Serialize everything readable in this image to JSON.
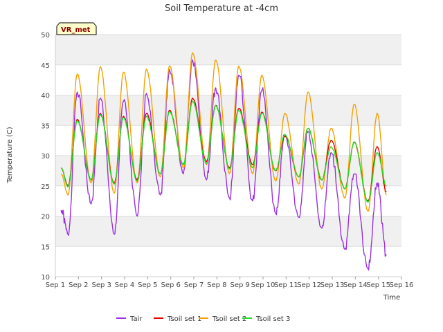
{
  "chart_data": {
    "type": "line",
    "title": "Soil Temperature at -4cm",
    "xlabel": "Time",
    "ylabel": "Temperature (C)",
    "ylim": [
      10,
      50
    ],
    "xlim": [
      1,
      16
    ],
    "yticks": [
      10,
      15,
      20,
      25,
      30,
      35,
      40,
      45,
      50
    ],
    "xticks": [
      1,
      2,
      3,
      4,
      5,
      6,
      7,
      8,
      9,
      10,
      11,
      12,
      13,
      14,
      15,
      16
    ],
    "xtick_labels": [
      "Sep 1",
      "Sep 2",
      "Sep 3",
      "Sep 4",
      "Sep 5",
      "Sep 6",
      "Sep 7",
      "Sep 8",
      "Sep 9",
      "Sep 10",
      "Sep 11",
      "Sep 12",
      "Sep 13",
      "Sep 14",
      "Sep 15",
      "Sep 16"
    ],
    "grid": true,
    "banded_background": true,
    "legend_position": "bottom",
    "annotation": "VR_met",
    "daily_min_x": [
      1.55,
      2.55,
      3.55,
      4.55,
      5.55,
      6.55,
      7.55,
      8.55,
      9.55,
      10.55,
      11.55,
      12.55,
      13.55,
      14.55
    ],
    "daily_max_x": [
      1.95,
      2.95,
      3.95,
      4.95,
      5.95,
      6.95,
      7.95,
      8.95,
      9.95,
      10.95,
      11.95,
      12.95,
      13.95,
      14.95
    ],
    "series": [
      {
        "name": "Tair",
        "color": "#9a30e0",
        "x_start": 1.25,
        "x_end": 15.35,
        "start_value": 21,
        "end_value": 13.5,
        "mins": [
          17,
          22,
          17,
          20,
          23.5,
          27,
          26,
          23,
          22.5,
          20.5,
          19.8,
          18,
          14.5,
          11.3
        ],
        "maxs": [
          40.5,
          39.5,
          39,
          40.3,
          44.2,
          45.8,
          41.2,
          43.3,
          40.8,
          33.5,
          34,
          30.5,
          27,
          25.5
        ]
      },
      {
        "name": "Tsoil set 1",
        "color": "#dd0000",
        "x_start": 1.25,
        "x_end": 15.35,
        "start_value": 28,
        "end_value": 24,
        "mins": [
          25,
          26,
          25.5,
          26,
          27,
          28.5,
          29,
          28,
          28.5,
          27.5,
          26.5,
          26,
          24.5,
          22.5
        ],
        "maxs": [
          36,
          37,
          36.5,
          37,
          37.5,
          39.5,
          38.3,
          37.8,
          37.2,
          33.2,
          34.5,
          32.5,
          32.2,
          31.5
        ]
      },
      {
        "name": "Tsoil set 2",
        "color": "#f5a000",
        "x_start": 1.25,
        "x_end": 15.35,
        "start_value": 27,
        "end_value": 23.5,
        "mins": [
          23.5,
          25.5,
          23.8,
          25.5,
          26.5,
          28,
          28.5,
          27,
          27,
          25.8,
          25.3,
          24.5,
          23,
          20.8
        ],
        "maxs": [
          43.5,
          44.7,
          43.8,
          44.3,
          44.8,
          47,
          45.8,
          44.8,
          43.3,
          37,
          40.5,
          34.5,
          38.5,
          37
        ]
      },
      {
        "name": "Tsoil set 3",
        "color": "#22dd22",
        "x_start": 1.25,
        "x_end": 15.35,
        "start_value": 28,
        "end_value": 25,
        "mins": [
          24.8,
          26,
          25.3,
          25.8,
          27,
          28.5,
          28.7,
          27.8,
          28,
          27.5,
          26.5,
          26,
          24.5,
          22.3
        ],
        "maxs": [
          35.8,
          36.8,
          36.3,
          36.5,
          37.3,
          39,
          38.3,
          37.5,
          37,
          33.5,
          34.5,
          31.5,
          32.3,
          30.5
        ]
      }
    ]
  }
}
